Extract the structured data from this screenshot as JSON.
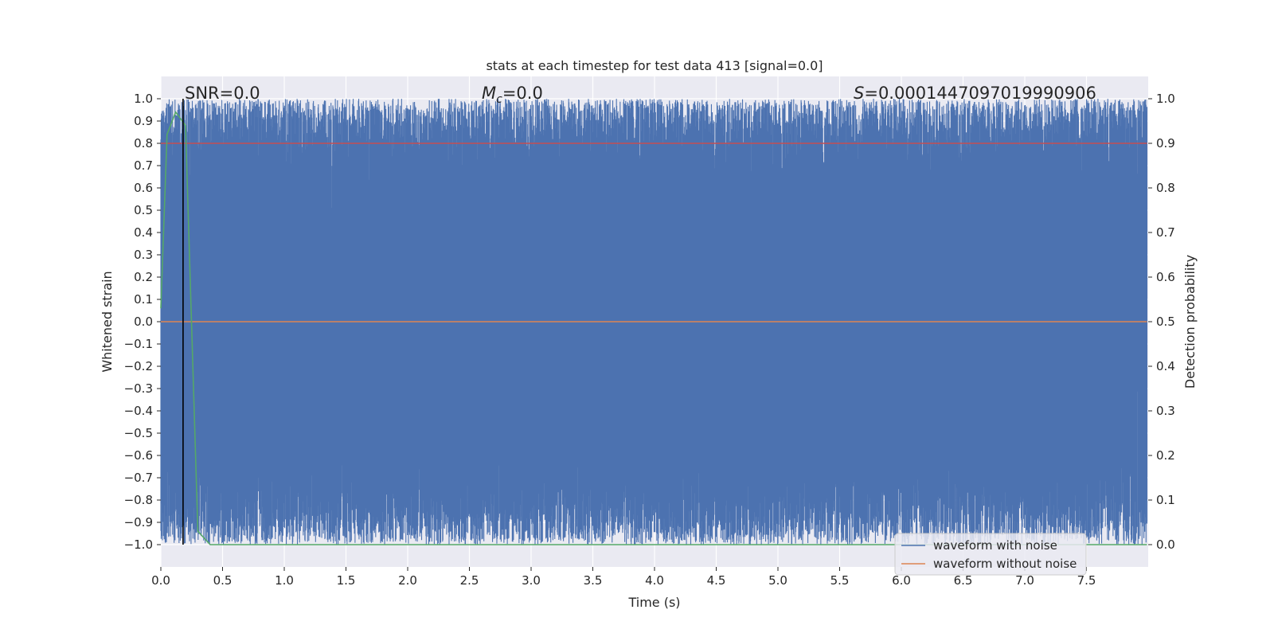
{
  "chart_data": {
    "type": "line",
    "title": "stats at each timestep for test data 413 [signal=0.0]",
    "xlabel": "Time (s)",
    "ylabel": "Whitened strain",
    "y2label": "Detection probability",
    "xlim": [
      0.0,
      8.0
    ],
    "ylim": [
      -1.1,
      1.1
    ],
    "y2lim": [
      -0.05,
      1.05
    ],
    "xticks": [
      "0.0",
      "0.5",
      "1.0",
      "1.5",
      "2.0",
      "2.5",
      "3.0",
      "3.5",
      "4.0",
      "4.5",
      "5.0",
      "5.5",
      "6.0",
      "6.5",
      "7.0",
      "7.5"
    ],
    "yticks": [
      "1.0",
      "0.9",
      "0.8",
      "0.7",
      "0.6",
      "0.5",
      "0.4",
      "0.3",
      "0.2",
      "0.1",
      "0.0",
      "−0.1",
      "−0.2",
      "−0.3",
      "−0.4",
      "−0.5",
      "−0.6",
      "−0.7",
      "−0.8",
      "−0.9",
      "−1.0"
    ],
    "y2ticks": [
      "1.0",
      "0.9",
      "0.8",
      "0.7",
      "0.6",
      "0.5",
      "0.4",
      "0.3",
      "0.2",
      "0.1",
      "0.0"
    ],
    "grid": true,
    "legend_placement": "lower-right",
    "annotations": {
      "snr_prefix": "SNR=0.0",
      "mc_symbol": "M",
      "mc_sub": "c",
      "mc_value": "=0.0",
      "s_symbol": "S",
      "s_value": "=0.0001447097019990906"
    },
    "series": [
      {
        "name": "waveform with noise",
        "axis": "left",
        "color": "#4c72b0",
        "x_range": [
          0.0,
          7.99
        ],
        "value_range": [
          -1.0,
          1.0
        ],
        "description_values": "dense whitened noise filling approximately -1.0 to 1.0"
      },
      {
        "name": "waveform without noise",
        "axis": "left",
        "color": "#dd8452",
        "x_range": [
          0.0,
          7.99
        ],
        "constant_value": 0.0
      },
      {
        "axis": "right",
        "color": "#55a868",
        "x": [
          0.0,
          0.05,
          0.12,
          0.2,
          0.3,
          0.4,
          0.5,
          1.0,
          2.0,
          3.0,
          4.0,
          5.0,
          6.0,
          7.0,
          7.99
        ],
        "values": [
          0.53,
          0.92,
          0.97,
          0.94,
          0.03,
          0.0,
          0.0,
          0.0,
          0.0,
          0.0,
          0.0,
          0.0,
          0.0,
          0.0,
          0.0
        ]
      },
      {
        "axis": "right",
        "color": "#c44e52",
        "x_range": [
          0.0,
          7.99
        ],
        "constant_value": 0.9
      }
    ],
    "vertical_line": {
      "x": 0.18,
      "color": "#000000"
    }
  },
  "colors": {
    "plot_bg": "#eaeaf2",
    "grid": "#ffffff",
    "noise": "#4c72b0",
    "clean": "#dd8452",
    "prob": "#55a868",
    "threshold": "#c44e52"
  }
}
